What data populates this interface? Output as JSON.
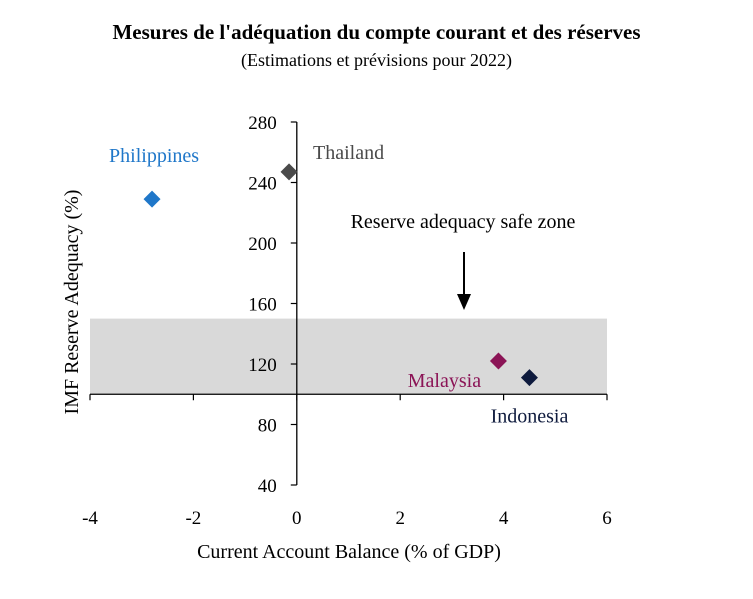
{
  "header": {
    "title": "Mesures de l'adéquation du compte courant et des réserves",
    "subtitle": "(Estimations et prévisions pour 2022)"
  },
  "chart_data": {
    "type": "scatter",
    "xlabel": "Current Account Balance (% of GDP)",
    "ylabel": "IMF Reserve Adequacy (%)",
    "xlim": [
      -4,
      6
    ],
    "ylim": [
      40,
      280
    ],
    "x_axis_crosses_y_at": 100,
    "xticks": [
      -4,
      -2,
      0,
      2,
      4,
      6
    ],
    "yticks": [
      40,
      80,
      120,
      160,
      200,
      240,
      280
    ],
    "safe_zone": {
      "label": "Reserve adequacy safe zone",
      "y_range": [
        100,
        150
      ],
      "color": "#d9d9d9"
    },
    "points": [
      {
        "name": "Philippines",
        "x": -2.8,
        "y": 229,
        "color": "#1f77c9",
        "label_color": "#1f77c9"
      },
      {
        "name": "Thailand",
        "x": -0.15,
        "y": 247,
        "color": "#4a4a4a",
        "label_color": "#4a4a4a"
      },
      {
        "name": "Malaysia",
        "x": 3.9,
        "y": 122,
        "color": "#8b1456",
        "label_color": "#8b1456"
      },
      {
        "name": "Indonesia",
        "x": 4.5,
        "y": 111,
        "color": "#0e1a3d",
        "label_color": "#0e1a3d"
      }
    ]
  }
}
